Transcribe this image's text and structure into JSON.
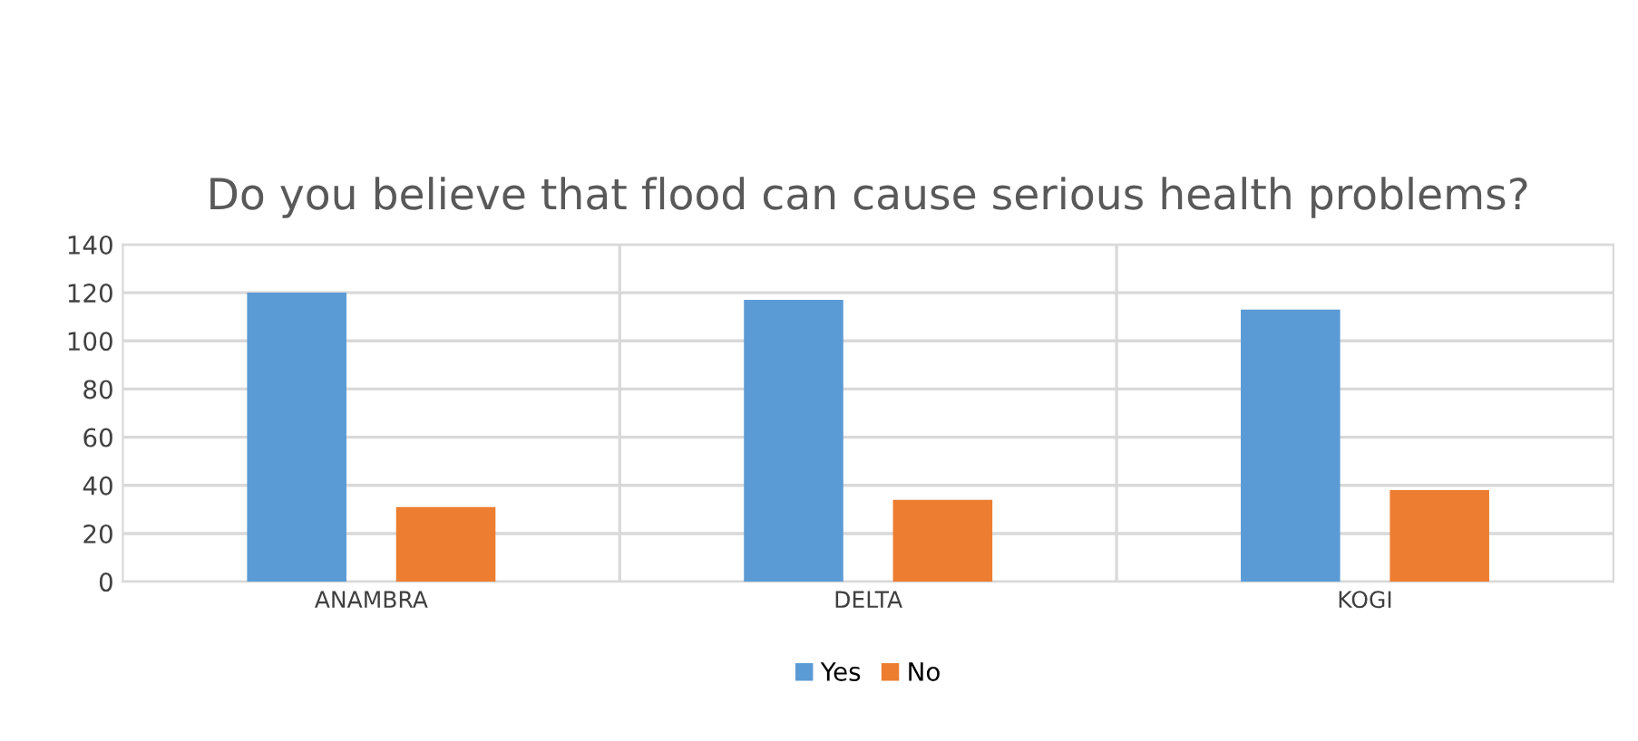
{
  "chart_data": {
    "type": "bar",
    "title": "Do you believe that flood can cause serious health problems?",
    "categories": [
      "ANAMBRA",
      "DELTA",
      "KOGI"
    ],
    "series": [
      {
        "name": "Yes",
        "color": "#5b9bd5",
        "values": [
          120,
          117,
          113
        ]
      },
      {
        "name": "No",
        "color": "#ed7d31",
        "values": [
          31,
          34,
          38
        ]
      }
    ],
    "ylim": [
      0,
      140
    ],
    "yticks": [
      0,
      20,
      40,
      60,
      80,
      100,
      120,
      140
    ],
    "grid": true,
    "legend": "bottom"
  }
}
